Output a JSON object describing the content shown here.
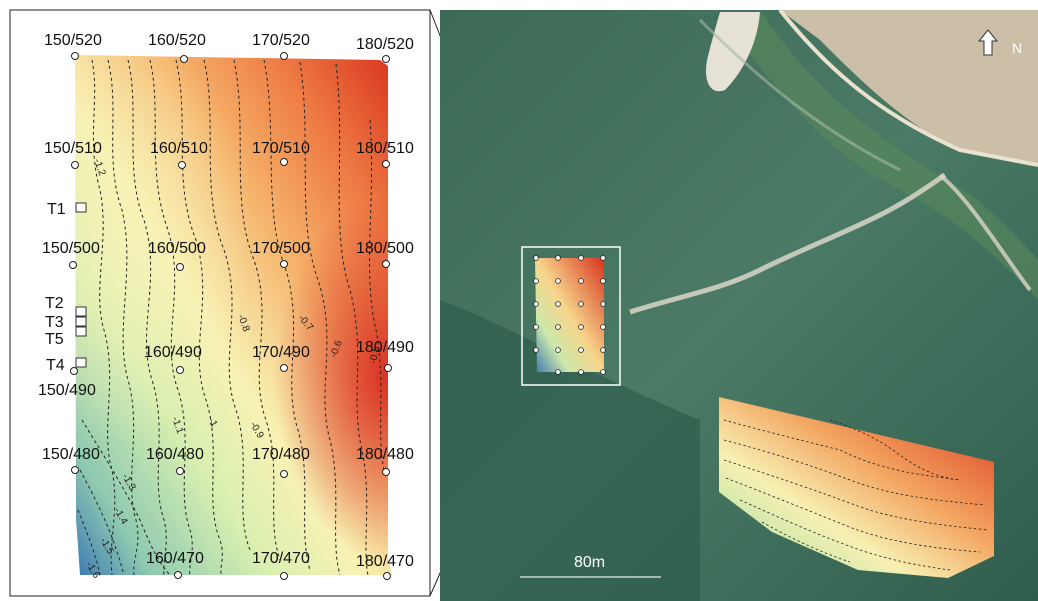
{
  "grid_points": [
    {
      "label": "150/520"
    },
    {
      "label": "160/520"
    },
    {
      "label": "170/520"
    },
    {
      "label": "180/520"
    },
    {
      "label": "150/510"
    },
    {
      "label": "160/510"
    },
    {
      "label": "170/510"
    },
    {
      "label": "180/510"
    },
    {
      "label": "150/500"
    },
    {
      "label": "160/500"
    },
    {
      "label": "170/500"
    },
    {
      "label": "180/500"
    },
    {
      "label": "150/490"
    },
    {
      "label": "160/490"
    },
    {
      "label": "170/490"
    },
    {
      "label": "180/490"
    },
    {
      "label": "150/480"
    },
    {
      "label": "160/480"
    },
    {
      "label": "170/480"
    },
    {
      "label": "180/480"
    },
    {
      "label": "160/470"
    },
    {
      "label": "170/470"
    },
    {
      "label": "180/470"
    }
  ],
  "trenches": [
    {
      "label": "T1"
    },
    {
      "label": "T2"
    },
    {
      "label": "T3"
    },
    {
      "label": "T5"
    },
    {
      "label": "T4"
    }
  ],
  "contour_labels": [
    "-1.2",
    "-0.8",
    "-0.7",
    "-0.6",
    "-0.5",
    "-1.1",
    "-1",
    "-0.9",
    "-1.3",
    "-1.4",
    "-1.5",
    "-1.6"
  ],
  "scale_bar": {
    "label": "80m"
  },
  "north_arrow": {
    "label": "N"
  },
  "colors": {
    "low": "#3b78b4",
    "mid_low": "#b9e0a8",
    "mid": "#f6f0b0",
    "mid_high": "#f29a55",
    "high": "#d7301f",
    "sea": "#3f6b58",
    "field": "#cbbfa7"
  }
}
